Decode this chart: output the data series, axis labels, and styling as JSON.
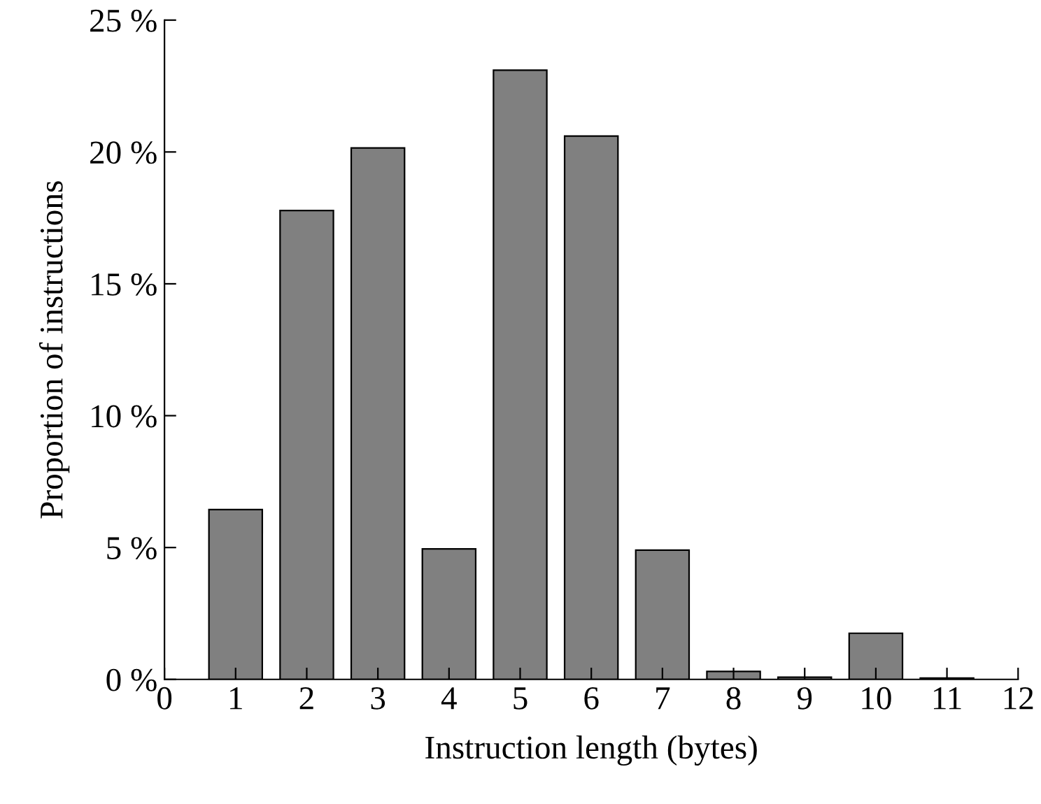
{
  "chart_data": {
    "type": "bar",
    "xlabel": "Instruction length (bytes)",
    "ylabel": "Proportion of instructions",
    "x": [
      1,
      2,
      3,
      4,
      5,
      6,
      7,
      8,
      9,
      10,
      11
    ],
    "values": [
      6.44,
      17.78,
      20.15,
      4.95,
      23.1,
      20.6,
      4.9,
      0.3,
      0.08,
      1.75,
      0.05
    ],
    "color": "#808080",
    "xlim": [
      0,
      12
    ],
    "xticks": [
      0,
      1,
      2,
      3,
      4,
      5,
      6,
      7,
      8,
      9,
      10,
      11,
      12
    ],
    "ylim": [
      0,
      25
    ],
    "yticks": [
      {
        "value": 0,
        "label": "0 %"
      },
      {
        "value": 5,
        "label": "5 %"
      },
      {
        "value": 10,
        "label": "10 %"
      },
      {
        "value": 15,
        "label": "15 %"
      },
      {
        "value": 20,
        "label": "20 %"
      },
      {
        "value": 25,
        "label": "25 %"
      }
    ],
    "grid": false,
    "legend": false
  }
}
